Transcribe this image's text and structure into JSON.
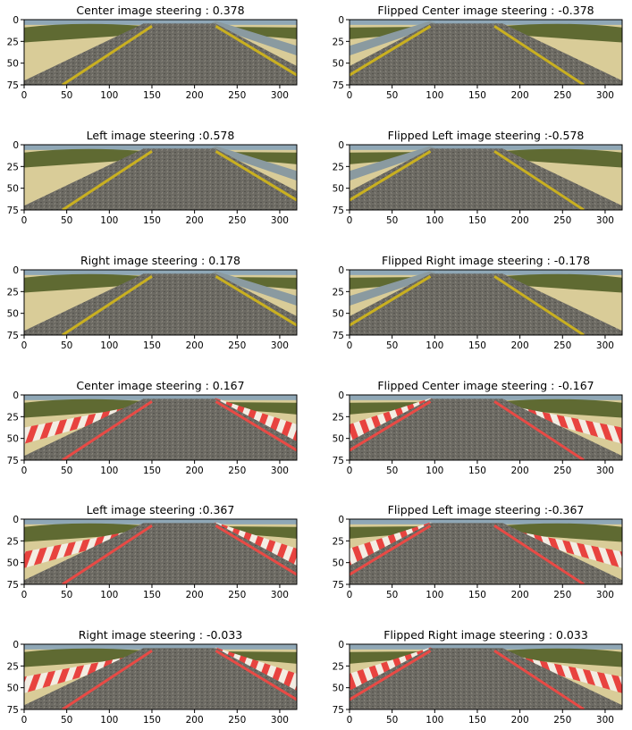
{
  "figure": {
    "panels": [
      {
        "title": "Center image steering : 0.378",
        "flipped": false,
        "scene": "desert-yellow",
        "lane_color": "#c9b020"
      },
      {
        "title": "Flipped Center image steering : -0.378",
        "flipped": true,
        "scene": "desert-yellow",
        "lane_color": "#c9b020"
      },
      {
        "title": "Left image steering :0.578",
        "flipped": false,
        "scene": "desert-yellow",
        "lane_color": "#c9b020"
      },
      {
        "title": "Flipped Left image steering :-0.578",
        "flipped": true,
        "scene": "desert-yellow",
        "lane_color": "#c9b020"
      },
      {
        "title": "Right image steering : 0.178",
        "flipped": false,
        "scene": "desert-yellow",
        "lane_color": "#c9b020"
      },
      {
        "title": "Flipped Right image steering : -0.178",
        "flipped": true,
        "scene": "desert-yellow",
        "lane_color": "#c9b020"
      },
      {
        "title": "Center image steering : 0.167",
        "flipped": false,
        "scene": "red-white-curb",
        "lane_color": "#e84a45"
      },
      {
        "title": "Flipped Center image steering : -0.167",
        "flipped": true,
        "scene": "red-white-curb",
        "lane_color": "#e84a45"
      },
      {
        "title": "Left image steering :0.367",
        "flipped": false,
        "scene": "red-white-curb",
        "lane_color": "#e84a45"
      },
      {
        "title": "Flipped Left image steering :-0.367",
        "flipped": true,
        "scene": "red-white-curb",
        "lane_color": "#e84a45"
      },
      {
        "title": "Right image steering : -0.033",
        "flipped": false,
        "scene": "red-white-curb",
        "lane_color": "#e84a45"
      },
      {
        "title": "Flipped Right image steering : 0.033",
        "flipped": true,
        "scene": "red-white-curb",
        "lane_color": "#e84a45"
      }
    ],
    "x_ticks": [
      0,
      50,
      100,
      150,
      200,
      250,
      300
    ],
    "y_ticks": [
      0,
      25,
      50,
      75
    ],
    "x_range": [
      0,
      320
    ],
    "y_range": [
      0,
      75
    ],
    "colors": {
      "road": "#6c6a63",
      "sand": "#d9cc98",
      "bushes": "#5f6a32",
      "sky": "#8fa7b6",
      "axis": "#000000",
      "text": "#000000"
    }
  }
}
